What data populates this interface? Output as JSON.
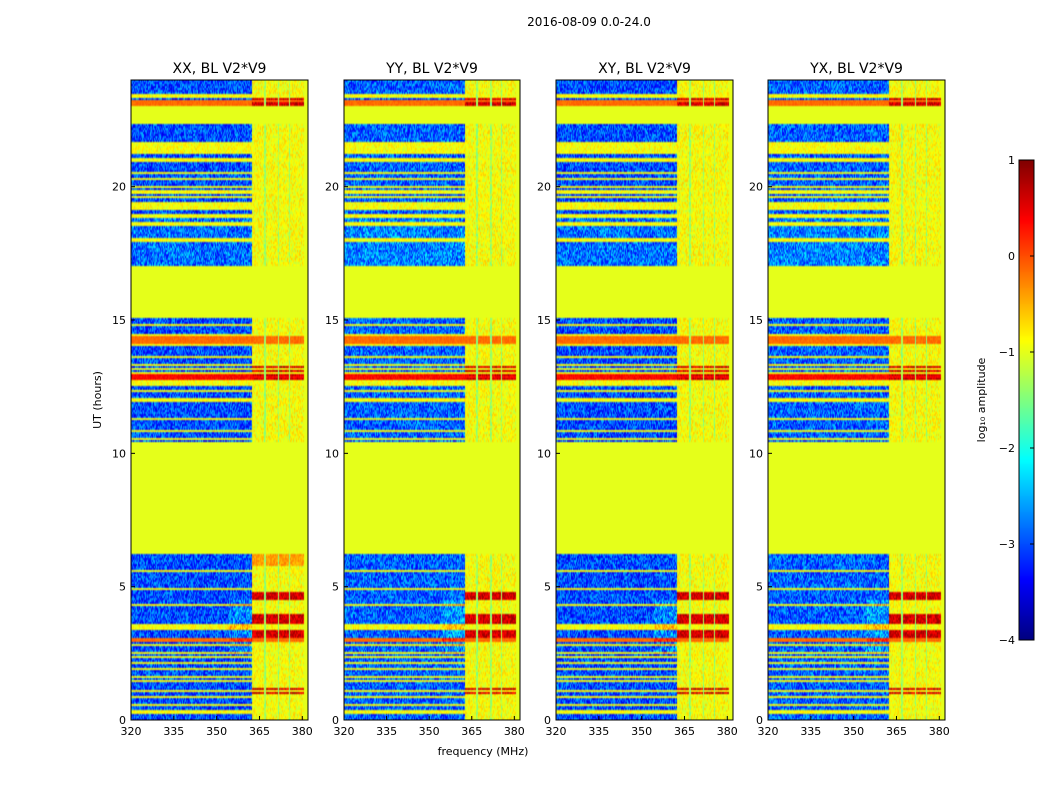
{
  "chart_data": {
    "type": "heatmap",
    "suptitle": "2016-08-09 0.0-24.0",
    "xlabel": "frequency (MHz)",
    "ylabel": "UT (hours)",
    "xlim": [
      320,
      382
    ],
    "ylim": [
      0,
      24
    ],
    "xticks": [
      320,
      335,
      350,
      365,
      380
    ],
    "yticks": [
      0,
      5,
      10,
      15,
      20
    ],
    "panels": [
      {
        "title": "XX, BL V2*V9",
        "variant": 0
      },
      {
        "title": "YY, BL V2*V9",
        "variant": 1
      },
      {
        "title": "XY, BL V2*V9",
        "variant": 2
      },
      {
        "title": "YX, BL V2*V9",
        "variant": 3
      }
    ],
    "colorbar": {
      "label": "log₁₀ amplitude",
      "range": [
        -4,
        1
      ],
      "ticks": [
        -4,
        -3,
        -2,
        -1,
        0,
        1
      ],
      "tick_labels": [
        "−4",
        "−3",
        "−2",
        "−1",
        "0",
        "1"
      ],
      "colormap": "jet"
    },
    "masked_time_ranges": [
      [
        6.25,
        10.45
      ],
      [
        15.05,
        17.0
      ],
      [
        22.35,
        23.0
      ]
    ],
    "masked_value": -1,
    "rfi_band_mhz": [
      362.5,
      380.5
    ],
    "rfi_gaps_mhz": [
      [
        366.6,
        367.2
      ],
      [
        371.4,
        372.0
      ],
      [
        375.3,
        375.8
      ]
    ],
    "masked_freq_mhz": [
      [
        380.5,
        382
      ]
    ],
    "horizontal_lines_ut": [
      0.3,
      0.55,
      0.85,
      1.1,
      1.45,
      1.6,
      1.9,
      2.15,
      2.35,
      2.5,
      2.8,
      2.95,
      3.05,
      3.45,
      3.55,
      4.3,
      4.9,
      5.6,
      10.55,
      10.85,
      11.3,
      12.0,
      12.35,
      12.6,
      12.7,
      12.85,
      13.0,
      13.15,
      13.3,
      13.6,
      14.05,
      14.25,
      14.45,
      14.8,
      18.0,
      18.6,
      18.9,
      19.2,
      19.35,
      19.6,
      19.8,
      20.0,
      20.3,
      20.5,
      21.0,
      21.3,
      21.45,
      21.6,
      23.2,
      23.4
    ]
  }
}
